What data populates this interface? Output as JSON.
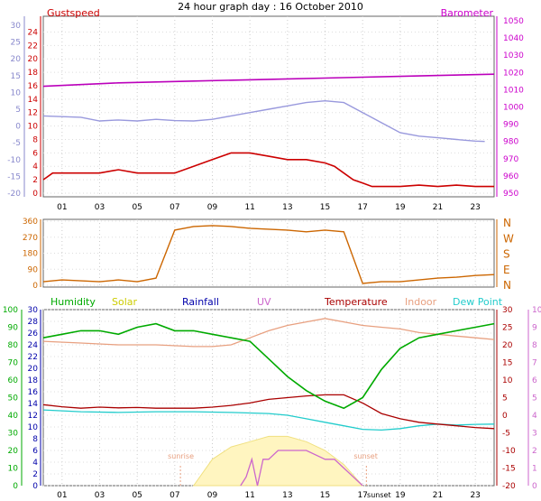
{
  "title": "24 hour graph day : 16 October 2010",
  "colors": {
    "gust": "#cc0000",
    "wind": "#0000cc",
    "baro": "#cc00cc",
    "baroline": "#bb00bb",
    "temp_left_axis": "#8888cc",
    "winddir": "#cc6600",
    "humidity": "#00aa00",
    "solar": "#cccc00",
    "rain": "#0000aa",
    "uv": "#cc66cc",
    "temperature": "#aa0000",
    "indoor": "#e8a080",
    "dewpoint": "#22cccc"
  },
  "chart_data": [
    {
      "type": "line",
      "panel": "wind-barometer",
      "labels": {
        "left": "Gustspeed",
        "right": "Barometer"
      },
      "x_ticks": [
        "01",
        "03",
        "05",
        "07",
        "09",
        "11",
        "13",
        "15",
        "17",
        "19",
        "21",
        "23"
      ],
      "outer_left_ticks": [
        "-20",
        "-15",
        "-10",
        "-5",
        "0",
        "5",
        "10",
        "15",
        "20",
        "25",
        "30"
      ],
      "inner_left_ticks": [
        "0",
        "2",
        "4",
        "6",
        "8",
        "10",
        "12",
        "14",
        "16",
        "18",
        "20",
        "22",
        "24"
      ],
      "right_ticks": [
        "950",
        "960",
        "970",
        "980",
        "990",
        "1000",
        "1010",
        "1020",
        "1030",
        "1040",
        "1050"
      ],
      "ylim_gust": [
        0,
        25
      ],
      "ylim_baro": [
        950,
        1050
      ],
      "ylim_temp": [
        -20,
        30
      ],
      "xlim": [
        0,
        24
      ],
      "series": [
        {
          "name": "Gustspeed",
          "axis": "gust",
          "x": [
            0,
            0.5,
            1,
            2,
            3,
            4,
            5,
            6,
            7,
            8,
            9,
            10,
            11,
            12,
            13,
            14,
            15,
            15.5,
            16,
            16.5,
            17,
            17.5,
            18,
            19,
            20,
            21,
            22,
            23,
            24
          ],
          "values": [
            2,
            3,
            3,
            3,
            3,
            3.5,
            3,
            3,
            3,
            4,
            5,
            6,
            6,
            5.5,
            5,
            5,
            4.5,
            4,
            3,
            2,
            1.5,
            1,
            1,
            1,
            1.2,
            1,
            1.2,
            1,
            1
          ]
        },
        {
          "name": "Barometer",
          "axis": "baro",
          "x": [
            0,
            4,
            8,
            12,
            16,
            20,
            24
          ],
          "values": [
            1012,
            1014,
            1015,
            1016,
            1017,
            1018,
            1019
          ]
        },
        {
          "axis": "temp",
          "x": [
            0,
            1,
            2,
            3,
            4,
            5,
            6,
            7,
            8,
            9,
            10,
            11,
            12,
            13,
            14,
            15,
            16,
            17,
            18,
            19,
            20,
            21,
            22,
            23,
            23.5
          ],
          "values": [
            3,
            2.8,
            2.6,
            1.5,
            1.8,
            1.5,
            2,
            1.6,
            1.5,
            2,
            3,
            4,
            5,
            6,
            7,
            7.5,
            7,
            4,
            1,
            -2,
            -3,
            -3.5,
            -4,
            -4.5,
            -4.6
          ]
        }
      ]
    },
    {
      "type": "line",
      "panel": "wind-direction",
      "y_ticks": [
        "0",
        "90",
        "180",
        "270",
        "360"
      ],
      "compass": [
        "N",
        "W",
        "S",
        "E",
        "N"
      ],
      "ylim": [
        0,
        360
      ],
      "xlim": [
        0,
        24
      ],
      "x": [
        0,
        1,
        2,
        3,
        4,
        5,
        6,
        7,
        8,
        9,
        10,
        11,
        12,
        13,
        14,
        15,
        16,
        17,
        18,
        19,
        20,
        21,
        22,
        23,
        24
      ],
      "values": [
        20,
        30,
        25,
        20,
        30,
        20,
        40,
        310,
        330,
        335,
        330,
        320,
        315,
        310,
        300,
        310,
        300,
        10,
        20,
        20,
        30,
        40,
        45,
        55,
        60
      ]
    },
    {
      "type": "line",
      "panel": "weather",
      "legend": [
        "Humidity",
        "Solar",
        "Rainfall",
        "UV",
        "Temperature",
        "Indoor",
        "Dew Point"
      ],
      "outer_left_ticks": [
        "0",
        "10",
        "20",
        "30",
        "40",
        "50",
        "60",
        "70",
        "80",
        "90",
        "100"
      ],
      "inner_left_ticks": [
        "0",
        "2",
        "4",
        "6",
        "8",
        "10",
        "12",
        "14",
        "16",
        "18",
        "20",
        "22",
        "24",
        "26",
        "28",
        "30"
      ],
      "right_ticks": [
        "-20",
        "-15",
        "-10",
        "-5",
        "0",
        "5",
        "10",
        "15",
        "20",
        "25",
        "30"
      ],
      "uv_ticks": [
        "0",
        "1",
        "2",
        "3",
        "4",
        "5",
        "6",
        "7",
        "8",
        "9",
        "10"
      ],
      "x_ticks": [
        "01",
        "03",
        "05",
        "07",
        "09",
        "11",
        "13",
        "15",
        "17",
        "19",
        "21",
        "23"
      ],
      "sunrise_label": "sunrise",
      "sunset_label": "sunset",
      "sunset_tick_label": "sunset",
      "sunrise_time": 7.3,
      "sunset_time": 17.2,
      "xlim": [
        0,
        24
      ],
      "series": [
        {
          "name": "Humidity",
          "axis": "humidity",
          "x": [
            0,
            1,
            2,
            3,
            4,
            5,
            6,
            7,
            8,
            9,
            10,
            11,
            12,
            13,
            14,
            15,
            16,
            17,
            18,
            19,
            20,
            21,
            22,
            23,
            24
          ],
          "values": [
            84,
            86,
            88,
            88,
            86,
            90,
            92,
            88,
            88,
            86,
            84,
            82,
            72,
            62,
            54,
            48,
            44,
            50,
            66,
            78,
            84,
            86,
            88,
            90,
            92
          ]
        },
        {
          "name": "Temperature",
          "axis": "temp",
          "x": [
            0,
            1,
            2,
            3,
            4,
            5,
            6,
            7,
            8,
            9,
            10,
            11,
            12,
            13,
            14,
            15,
            16,
            17,
            18,
            19,
            20,
            21,
            22,
            23,
            24
          ],
          "values": [
            3,
            2.4,
            2,
            2.3,
            2.1,
            2.2,
            2,
            2,
            2,
            2.3,
            2.8,
            3.5,
            4.5,
            5,
            5.5,
            5.8,
            5.8,
            3.5,
            0.5,
            -1,
            -2,
            -2.5,
            -3,
            -3.5,
            -3.8
          ]
        },
        {
          "name": "Indoor",
          "axis": "temp",
          "x": [
            0,
            2,
            4,
            6,
            8,
            9,
            10,
            11,
            12,
            13,
            14,
            15,
            16,
            17,
            18,
            19,
            20,
            21,
            22,
            23,
            24
          ],
          "values": [
            21,
            20.5,
            20,
            20,
            19.5,
            19.5,
            20,
            22,
            24,
            25.5,
            26.5,
            27.5,
            26.5,
            25.5,
            25,
            24.5,
            23.5,
            23,
            22.5,
            22,
            21.5
          ]
        },
        {
          "name": "Dew Point",
          "axis": "temp",
          "x": [
            0,
            2,
            4,
            6,
            8,
            10,
            12,
            13,
            14,
            15,
            16,
            17,
            18,
            19,
            20,
            21,
            22,
            23,
            24
          ],
          "values": [
            1.5,
            1,
            0.8,
            1,
            1,
            0.8,
            0.5,
            0,
            -1,
            -2,
            -3,
            -4,
            -4.2,
            -3.8,
            -3,
            -2.5,
            -2.8,
            -2.6,
            -2.5
          ]
        },
        {
          "name": "UV",
          "axis": "uv",
          "x": [
            10.5,
            10.8,
            11.1,
            11.4,
            11.7,
            12,
            12.5,
            13,
            14,
            15,
            15.5,
            16,
            16.5,
            17
          ],
          "values": [
            0,
            0.5,
            1.5,
            0,
            1.5,
            1.5,
            2,
            2,
            2,
            1.5,
            1.5,
            1,
            0.5,
            0
          ]
        },
        {
          "name": "Solar",
          "axis": "uv",
          "x": [
            8,
            9,
            10,
            11,
            12,
            13,
            14,
            15,
            16,
            17
          ],
          "values": [
            0,
            1.5,
            2.2,
            2.5,
            2.8,
            2.8,
            2.5,
            2,
            1.2,
            0
          ]
        }
      ]
    }
  ]
}
